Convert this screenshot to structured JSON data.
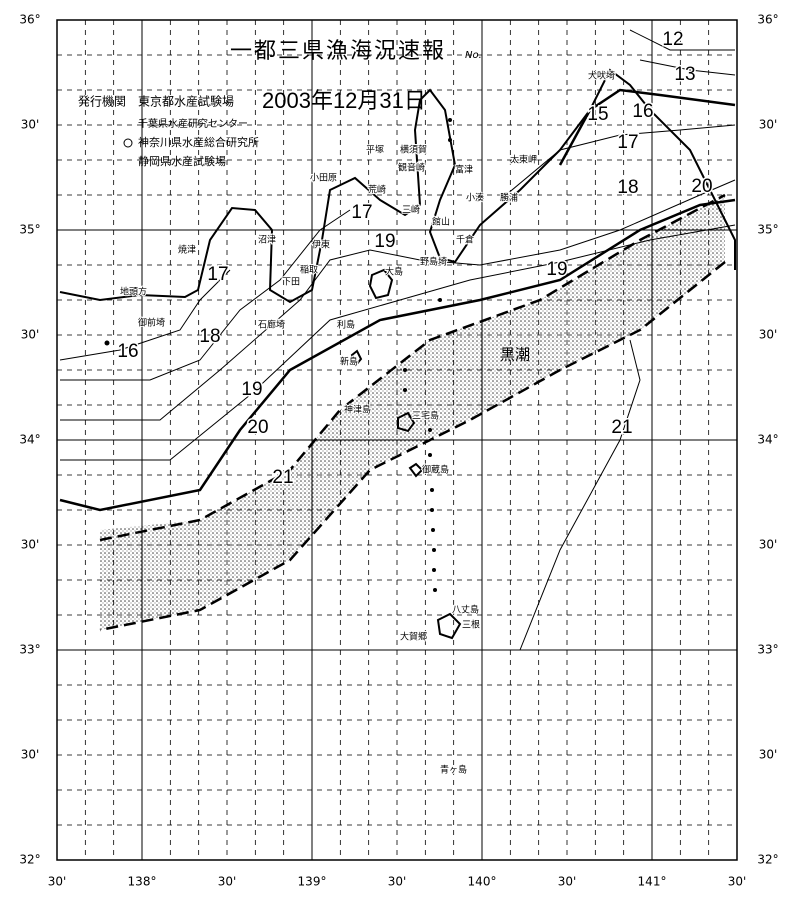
{
  "header": {
    "title": "一都三県漁海況速報",
    "number_label": "No.",
    "issuer_label": "発行機関",
    "issuers": [
      "東京都水産試験場",
      "千葉県水産研究センター",
      "神奈川県水産総合研究所",
      "静岡県水産試験場"
    ],
    "date": "2003年12月31日"
  },
  "map": {
    "lat_ticks": [
      {
        "value": 36,
        "label": "36°"
      },
      {
        "value": 35.5,
        "label": "30'"
      },
      {
        "value": 35,
        "label": "35°"
      },
      {
        "value": 34.5,
        "label": "30'"
      },
      {
        "value": 34,
        "label": "34°"
      },
      {
        "value": 33.5,
        "label": "30'"
      },
      {
        "value": 33,
        "label": "33°"
      },
      {
        "value": 32.5,
        "label": "30'"
      },
      {
        "value": 32,
        "label": "32°"
      }
    ],
    "lon_ticks": [
      {
        "value": 137.5,
        "label": "30'"
      },
      {
        "value": 138,
        "label": "138°"
      },
      {
        "value": 138.5,
        "label": "30'"
      },
      {
        "value": 139,
        "label": "139°"
      },
      {
        "value": 139.5,
        "label": "30'"
      },
      {
        "value": 140,
        "label": "140°"
      },
      {
        "value": 140.5,
        "label": "30'"
      },
      {
        "value": 141,
        "label": "141°"
      },
      {
        "value": 141.5,
        "label": "30'"
      }
    ],
    "current_label": "黒潮",
    "isotherm_labels": [
      12,
      13,
      15,
      16,
      17,
      18,
      20,
      17,
      19,
      19,
      17,
      16,
      18,
      19,
      20,
      21,
      21
    ],
    "places": [
      "犬吠埼",
      "太東岬",
      "勝浦",
      "小湊",
      "千倉",
      "館山",
      "野島埼",
      "富津",
      "観音崎",
      "横須賀",
      "三崎",
      "荒崎",
      "平塚",
      "小田原",
      "伊東",
      "稲取",
      "下田",
      "石廊埼",
      "沼津",
      "焼津",
      "御前埼",
      "大島",
      "利島",
      "新島",
      "神津島",
      "三宅島",
      "御蔵島",
      "八丈島",
      "三根",
      "大賀郷",
      "青ヶ島",
      "地頭方"
    ]
  }
}
